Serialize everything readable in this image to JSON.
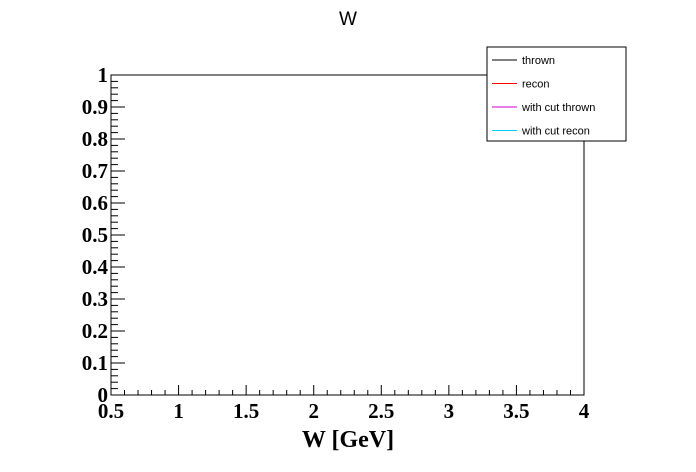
{
  "chart_data": {
    "type": "line",
    "title": "W",
    "xlabel": "W [GeV]",
    "ylabel": "",
    "xlim": [
      0.5,
      4
    ],
    "ylim": [
      0,
      1
    ],
    "x_ticks": [
      {
        "value": 0.5,
        "label": "0.5"
      },
      {
        "value": 1,
        "label": "1"
      },
      {
        "value": 1.5,
        "label": "1.5"
      },
      {
        "value": 2,
        "label": "2"
      },
      {
        "value": 2.5,
        "label": "2.5"
      },
      {
        "value": 3,
        "label": "3"
      },
      {
        "value": 3.5,
        "label": "3.5"
      },
      {
        "value": 4,
        "label": "4"
      }
    ],
    "y_ticks": [
      {
        "value": 0,
        "label": "0"
      },
      {
        "value": 0.1,
        "label": "0.1"
      },
      {
        "value": 0.2,
        "label": "0.2"
      },
      {
        "value": 0.3,
        "label": "0.3"
      },
      {
        "value": 0.4,
        "label": "0.4"
      },
      {
        "value": 0.5,
        "label": "0.5"
      },
      {
        "value": 0.6,
        "label": "0.6"
      },
      {
        "value": 0.7,
        "label": "0.7"
      },
      {
        "value": 0.8,
        "label": "0.8"
      },
      {
        "value": 0.9,
        "label": "0.9"
      },
      {
        "value": 1,
        "label": "1"
      }
    ],
    "grid": false,
    "legend_position": "top-right",
    "series": [
      {
        "name": "thrown",
        "color": "#000000",
        "values": []
      },
      {
        "name": "recon",
        "color": "#ff0000",
        "values": []
      },
      {
        "name": "with cut thrown",
        "color": "#cc00cc",
        "values": []
      },
      {
        "name": "with cut recon",
        "color": "#00ccff",
        "values": []
      }
    ]
  }
}
